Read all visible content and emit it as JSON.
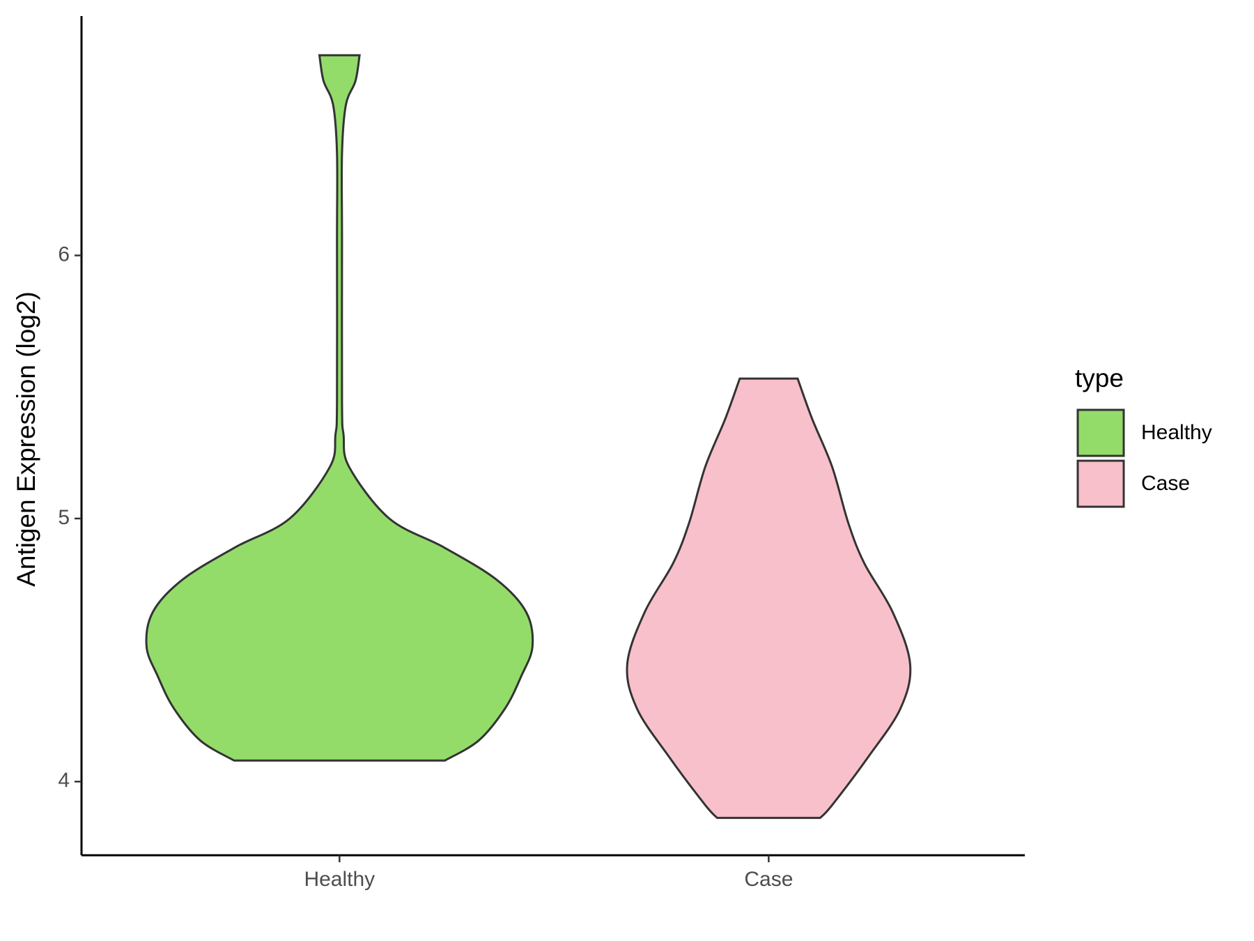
{
  "chart_data": {
    "type": "violin",
    "y_label": "Antigen Expression (log2)",
    "legend_title": "type",
    "categories": [
      "Healthy",
      "Case"
    ],
    "ylim": [
      3.72,
      6.91
    ],
    "yticks": [
      4,
      5,
      6
    ],
    "series": [
      {
        "name": "Healthy",
        "color": "#93dc6a",
        "y": [
          6.761,
          6.664,
          6.572,
          6.388,
          6.052,
          5.44,
          5.318,
          5.196,
          5.0,
          4.89,
          4.768,
          4.645,
          4.514,
          4.401,
          4.278,
          4.156,
          4.08
        ],
        "width": [
          0.104,
          0.083,
          0.033,
          0.013,
          0.013,
          0.013,
          0.021,
          0.05,
          0.258,
          0.542,
          0.813,
          0.967,
          1.0,
          0.942,
          0.858,
          0.721,
          0.546
        ]
      },
      {
        "name": "Case",
        "color": "#f8c0cb",
        "y": [
          5.532,
          5.379,
          5.196,
          4.982,
          4.829,
          4.645,
          4.446,
          4.278,
          4.095,
          3.911,
          3.862
        ],
        "width": [
          0.15,
          0.225,
          0.329,
          0.413,
          0.496,
          0.642,
          0.733,
          0.683,
          0.517,
          0.329,
          0.267
        ]
      }
    ]
  }
}
